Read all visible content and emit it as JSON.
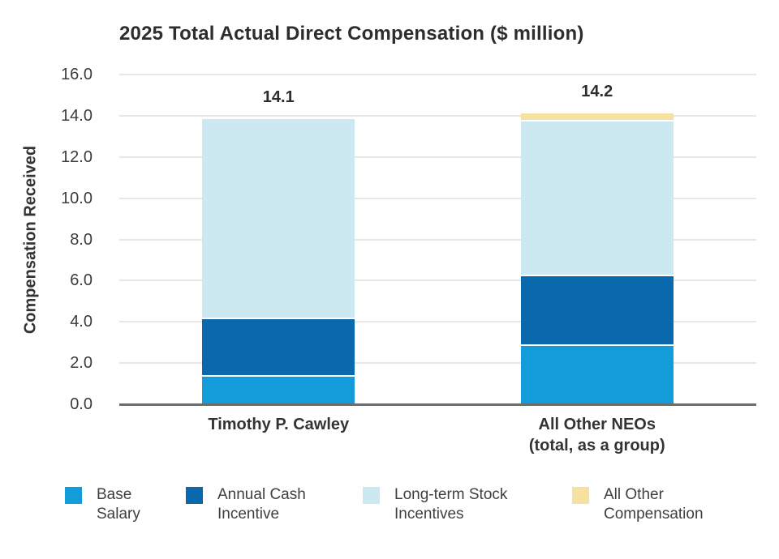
{
  "chart_data": {
    "type": "bar",
    "stacked": true,
    "title": "2025 Total Actual Direct Compensation ($ million)",
    "ylabel": "Compensation Received",
    "xlabel": "",
    "ylim": [
      0,
      16
    ],
    "grid": "horizontal",
    "legend_position": "bottom",
    "gridline_color": "#e7e7e7",
    "axis_line_color": "#6b6c6e",
    "yticks": {
      "values": [
        0,
        2,
        4,
        6,
        8,
        10,
        12,
        14,
        16
      ],
      "labels": [
        "0.0",
        "2.0",
        "4.0",
        "6.0",
        "8.0",
        "10.0",
        "12.0",
        "14.0",
        "16.0"
      ]
    },
    "categories": [
      "Timothy P. Cawley",
      "All Other NEOs\n(total, as a group)"
    ],
    "totals": [
      "14.1",
      "14.2"
    ],
    "series": [
      {
        "name": "Base\nSalary",
        "color": "#129cda",
        "values": [
          1.4,
          2.9
        ]
      },
      {
        "name": "Annual Cash\nIncentive",
        "color": "#0a68ac",
        "values": [
          2.8,
          3.4
        ]
      },
      {
        "name": "Long-term Stock\nIncentives",
        "color": "#cce9f2",
        "values": [
          9.7,
          7.5
        ]
      },
      {
        "name": "All Other\nCompensation",
        "color": "#f5e2a0",
        "values": [
          0,
          0.4
        ]
      }
    ]
  }
}
